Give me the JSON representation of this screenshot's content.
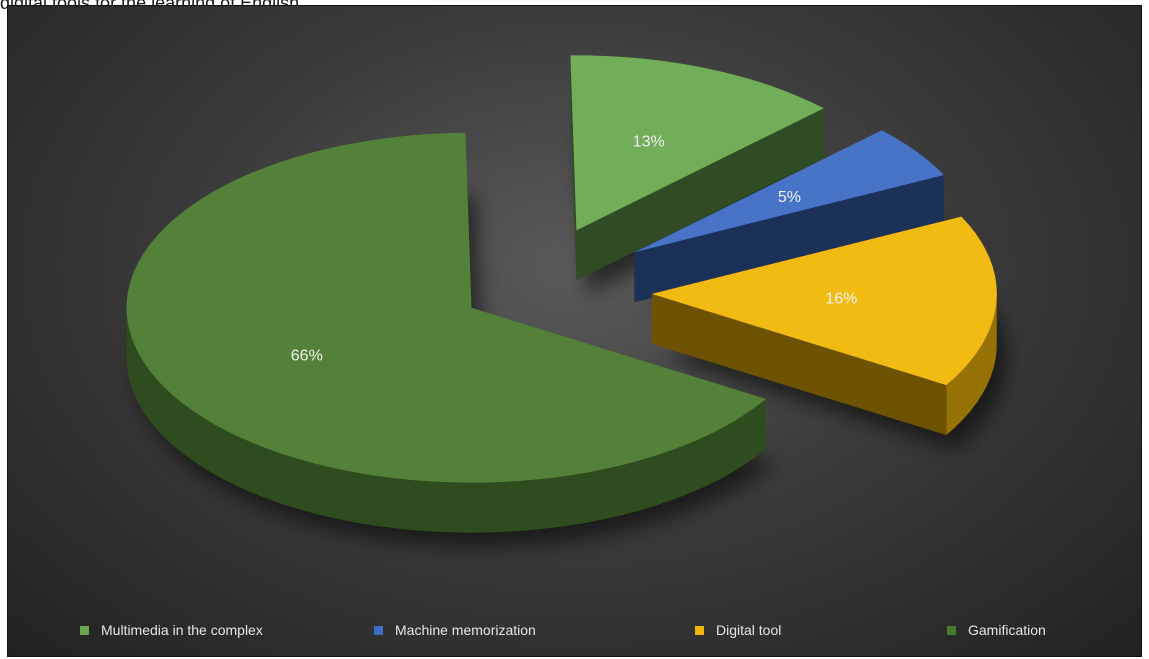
{
  "page": {
    "caption_fragment": "digital tools for the learning of English"
  },
  "chart_data": {
    "type": "pie",
    "style": "3d-exploded",
    "series": [
      {
        "name": "Multimedia in the complex",
        "value": 13,
        "label": "13%",
        "color": "#6aa84f"
      },
      {
        "name": "Machine memorization",
        "value": 5,
        "label": "5%",
        "color": "#3d6cc4"
      },
      {
        "name": "Digital tool",
        "value": 16,
        "label": "16%",
        "color": "#f2b705"
      },
      {
        "name": "Gamification",
        "value": 66,
        "label": "66%",
        "color": "#4a7a2e"
      }
    ],
    "legend_position": "bottom",
    "background": "#3a3a3a"
  }
}
